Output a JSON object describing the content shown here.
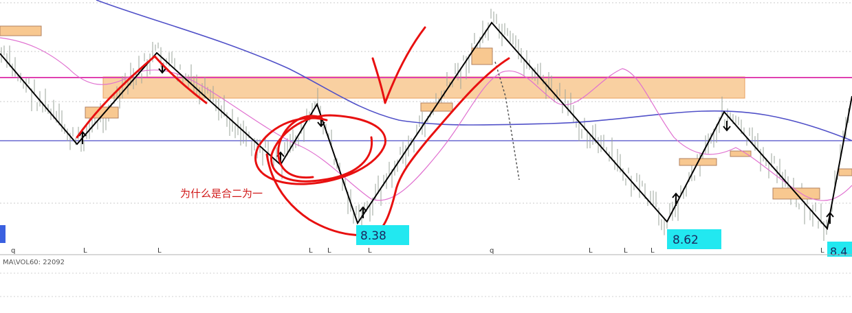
{
  "annotation_text": "为什么是合二为一",
  "indicator_label": "MA\\VOL60: 22092",
  "chart_data": {
    "type": "candlestick",
    "title": "",
    "axis_markers": [
      "q",
      "L",
      "L",
      "L",
      "L",
      "L",
      "q",
      "L",
      "L",
      "L",
      "L"
    ],
    "price_labels": [
      {
        "text": "8.38",
        "value": 8.38
      },
      {
        "text": "8.62",
        "value": 8.62
      },
      {
        "text": "8.4",
        "value": 8.4
      }
    ],
    "horizontal_lines": [
      {
        "name": "resistance-line",
        "color": "#e040b0"
      },
      {
        "name": "reference-line",
        "color": "#4a4ac8"
      }
    ],
    "zones": [
      {
        "name": "supply-zone",
        "color": "#f8c890"
      }
    ],
    "zigzag_color": "#000000",
    "ma_slow_color": "#5050c8",
    "ma_fast_color": "#e070d0",
    "candle_color": "#9aa39a",
    "freehand_color": "#e81010",
    "price_label_bg": "#22e8f0",
    "grid": "dotted"
  }
}
